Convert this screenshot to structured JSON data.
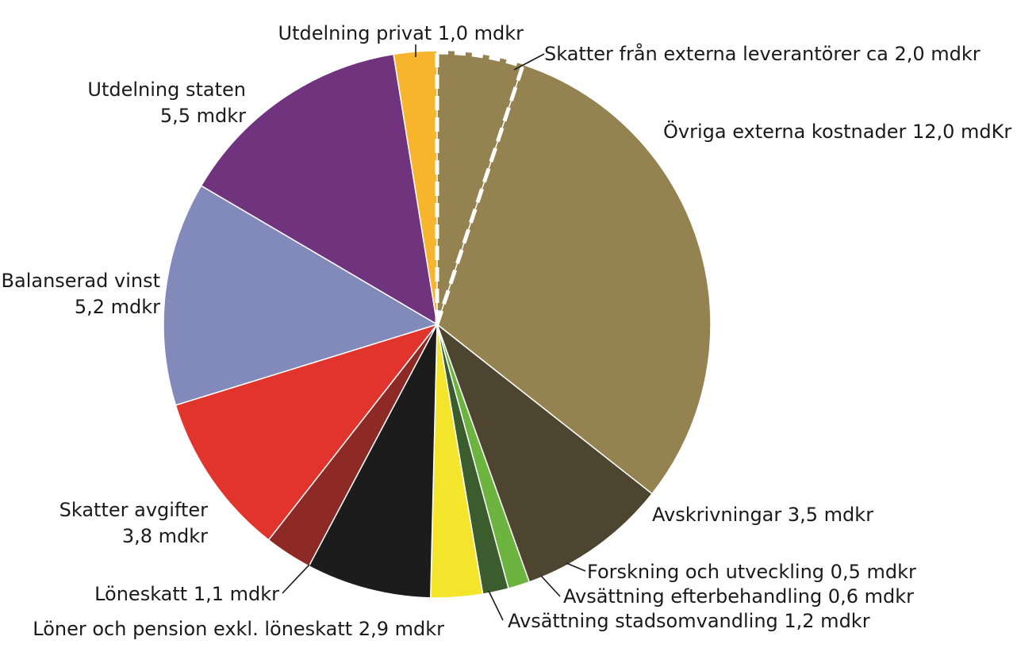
{
  "chart_data": {
    "type": "pie",
    "title": "",
    "unit": "mdkr",
    "slices": [
      {
        "key": "skatter-externa",
        "value": 2.0,
        "color": "#948350",
        "dashed": true,
        "label_lines": [
          "Skatter från externa leverantörer ca 2,0 mdkr"
        ]
      },
      {
        "key": "ovriga-externa",
        "value": 12.0,
        "color": "#948350",
        "label_lines": [
          "Övriga externa kostnader 12,0 mdKr"
        ]
      },
      {
        "key": "avskrivningar",
        "value": 3.5,
        "color": "#4e4530",
        "label_lines": [
          "Avskrivningar 3,5 mdkr"
        ]
      },
      {
        "key": "forskning",
        "value": 0.5,
        "color": "#6db33f",
        "label_lines": [
          "Forskning och utveckling 0,5 mdkr"
        ]
      },
      {
        "key": "avsattning-efterbehandling",
        "value": 0.6,
        "color": "#3b5d2d",
        "label_lines": [
          "Avsättning efterbehandling 0,6 mdkr"
        ]
      },
      {
        "key": "avsattning-stadsomvandling",
        "value": 1.2,
        "color": "#f2e52c",
        "label_lines": [
          "Avsättning stadsomvandling 1,2 mdkr"
        ]
      },
      {
        "key": "loner-pension",
        "value": 2.9,
        "color": "#1c1c1c",
        "label_lines": [
          "Löner och pension exkl. löneskatt 2,9 mdkr"
        ]
      },
      {
        "key": "loneskatt",
        "value": 1.1,
        "color": "#8e2a26",
        "label_lines": [
          "Löneskatt 1,1 mdkr"
        ]
      },
      {
        "key": "skatter-avgifter",
        "value": 3.8,
        "color": "#e0342c",
        "label_lines": [
          "Skatter avgifter",
          "3,8 mdkr"
        ]
      },
      {
        "key": "balanserad-vinst",
        "value": 5.2,
        "color": "#8289bb",
        "label_lines": [
          "Balanserad vinst",
          "5,2 mdkr"
        ]
      },
      {
        "key": "utdelning-staten",
        "value": 5.5,
        "color": "#70337d",
        "label_lines": [
          "Utdelning staten",
          "5,5 mdkr"
        ]
      },
      {
        "key": "utdelning-privat",
        "value": 1.0,
        "color": "#f7b52d",
        "label_lines": [
          "Utdelning privat 1,0 mdkr"
        ]
      }
    ]
  }
}
